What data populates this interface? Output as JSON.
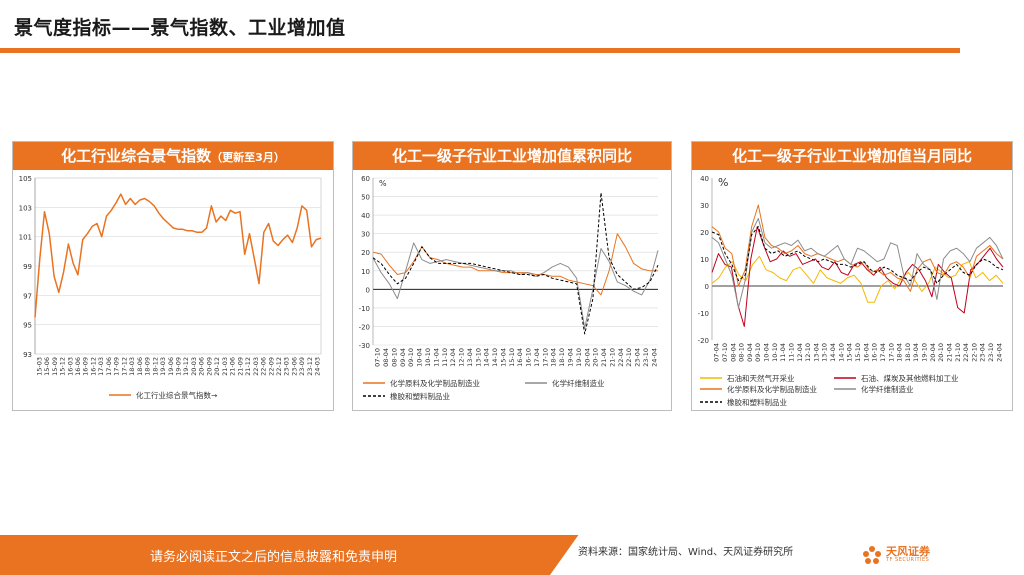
{
  "page": {
    "title": "景气度指标——景气指数、工业增加值",
    "footer_left": "请务必阅读正文之后的信息披露和免责申明",
    "footer_source": "资料来源：国家统计局、Wind、天风证券研究所",
    "logo_text": "天风证券",
    "logo_sub": "TF SECURITIES",
    "accent": "#e97321"
  },
  "chart_data": [
    {
      "type": "line",
      "title": "化工行业综合景气指数",
      "subtitle": "（更新至3月）",
      "ylim": [
        93,
        105
      ],
      "yticks": [
        "105",
        "103",
        "101",
        "99",
        "97",
        "95",
        "93"
      ],
      "xticks": [
        "15-03",
        "15-06",
        "15-09",
        "15-12",
        "16-03",
        "16-06",
        "16-09",
        "16-12",
        "17-03",
        "17-06",
        "17-09",
        "17-12",
        "18-03",
        "18-06",
        "18-09",
        "18-12",
        "19-03",
        "19-06",
        "19-09",
        "19-12",
        "20-03",
        "20-06",
        "20-09",
        "20-12",
        "21-03",
        "21-06",
        "21-09",
        "21-12",
        "22-03",
        "22-06",
        "22-09",
        "22-12",
        "23-03",
        "23-06",
        "23-09",
        "23-12",
        "24-03"
      ],
      "grid": true,
      "legend": "bottom",
      "series": [
        {
          "name": "化工行业综合景气指数→",
          "color": "#e97321",
          "values": [
            95.5,
            99.5,
            102.7,
            101.2,
            98.3,
            97.2,
            98.6,
            100.5,
            99.2,
            98.4,
            100.8,
            101.2,
            101.7,
            101.9,
            101.0,
            102.4,
            102.8,
            103.3,
            103.9,
            103.2,
            103.6,
            103.2,
            103.5,
            103.6,
            103.4,
            103.1,
            102.6,
            102.2,
            101.9,
            101.6,
            101.5,
            101.5,
            101.4,
            101.4,
            101.3,
            101.3,
            101.6,
            103.1,
            102.0,
            102.4,
            102.1,
            102.8,
            102.6,
            102.7,
            99.8,
            101.2,
            99.5,
            97.8,
            101.3,
            101.9,
            100.7,
            100.4,
            100.8,
            101.1,
            100.6,
            101.6,
            103.1,
            102.8,
            100.3,
            100.8,
            100.9
          ]
        }
      ]
    },
    {
      "type": "line",
      "title": "化工一级子行业工业增加值累积同比",
      "unit": "%",
      "ylim": [
        -30,
        60
      ],
      "yticks": [
        "60",
        "50",
        "40",
        "30",
        "20",
        "10",
        "0",
        "-10",
        "-20",
        "-30"
      ],
      "xticks": [
        "07-10",
        "08-04",
        "08-10",
        "09-04",
        "09-10",
        "10-04",
        "10-10",
        "11-04",
        "11-10",
        "12-04",
        "12-10",
        "13-04",
        "13-10",
        "14-04",
        "14-10",
        "15-04",
        "15-10",
        "16-04",
        "16-10",
        "17-04",
        "17-10",
        "18-04",
        "18-10",
        "19-04",
        "19-10",
        "20-04",
        "20-10",
        "21-04",
        "21-10",
        "22-04",
        "22-10",
        "23-04",
        "23-10",
        "24-04"
      ],
      "legend": "bottom",
      "series": [
        {
          "name": "化学原料及化学制品制造业",
          "color": "#e97321",
          "dash": "",
          "values": [
            20,
            19,
            13,
            8,
            9,
            15,
            23,
            17,
            16,
            14,
            13,
            12,
            12,
            10,
            10,
            10,
            9,
            9,
            9,
            9,
            8,
            8,
            7,
            7,
            5,
            4,
            3,
            2,
            -3,
            10,
            30,
            23,
            14,
            11,
            10,
            10
          ]
        },
        {
          "name": "化学纤维制造业",
          "color": "#8c8c8c",
          "dash": "",
          "values": [
            17,
            9,
            3,
            -5,
            10,
            25,
            16,
            14,
            15,
            16,
            15,
            14,
            13,
            12,
            11,
            10,
            10,
            10,
            8,
            9,
            7,
            9,
            12,
            14,
            12,
            6,
            -21,
            0,
            22,
            15,
            4,
            2,
            -1,
            -3,
            5,
            21
          ]
        },
        {
          "name": "橡胶和塑料制品业",
          "color": "#000000",
          "dash": "3,2",
          "values": [
            17,
            14,
            8,
            3,
            6,
            14,
            23,
            17,
            14,
            14,
            14,
            14,
            14,
            13,
            12,
            11,
            10,
            9,
            8,
            8,
            7,
            8,
            6,
            5,
            4,
            3,
            -24,
            -5,
            52,
            17,
            8,
            4,
            0,
            1,
            4,
            13
          ]
        }
      ]
    },
    {
      "type": "line",
      "title": "化工一级子行业工业增加值当月同比",
      "unit": "%",
      "ylim": [
        -20,
        40
      ],
      "yticks": [
        "40",
        "30",
        "20",
        "10",
        "0",
        "-10",
        "-20"
      ],
      "xticks": [
        "07-04",
        "07-10",
        "08-04",
        "08-10",
        "09-04",
        "09-10",
        "10-04",
        "10-10",
        "11-04",
        "11-10",
        "12-04",
        "12-10",
        "13-04",
        "13-10",
        "14-04",
        "14-10",
        "15-04",
        "15-10",
        "16-04",
        "16-10",
        "17-04",
        "17-10",
        "18-04",
        "18-10",
        "19-04",
        "19-10",
        "20-04",
        "20-10",
        "21-04",
        "21-10",
        "22-04",
        "22-10",
        "23-04",
        "23-10",
        "24-04"
      ],
      "legend": "bottom",
      "series": [
        {
          "name": "石油和天然气开采业",
          "color": "#f5b800",
          "dash": "",
          "values": [
            1,
            3,
            7,
            9,
            4,
            2,
            8,
            11,
            6,
            5,
            3,
            2,
            6,
            7,
            4,
            1,
            6,
            3,
            2,
            1,
            3,
            4,
            1,
            -6,
            -6,
            0,
            2,
            -1,
            3,
            5,
            2,
            -2,
            1,
            7,
            5,
            3,
            4,
            8,
            9,
            3,
            5,
            2,
            4,
            1
          ]
        },
        {
          "name": "石油、煤炭及其他燃料加工业",
          "color": "#c0001b",
          "dash": "",
          "values": [
            5,
            12,
            8,
            7,
            -7,
            -15,
            10,
            22,
            15,
            9,
            10,
            13,
            11,
            12,
            8,
            9,
            10,
            7,
            6,
            9,
            5,
            4,
            8,
            9,
            6,
            4,
            7,
            3,
            1,
            0,
            5,
            8,
            6,
            2,
            -4,
            8,
            5,
            3,
            -8,
            -10,
            6,
            8,
            11,
            14,
            10,
            7
          ]
        },
        {
          "name": "化学原料及化学制品制造业",
          "color": "#e97321",
          "dash": "",
          "values": [
            22,
            20,
            14,
            12,
            0,
            6,
            22,
            30,
            18,
            15,
            14,
            12,
            13,
            15,
            12,
            11,
            12,
            11,
            10,
            9,
            10,
            8,
            7,
            9,
            5,
            6,
            4,
            5,
            3,
            2,
            -2,
            6,
            9,
            10,
            5,
            4,
            8,
            9,
            7,
            3,
            11,
            13,
            15,
            12,
            10
          ]
        },
        {
          "name": "化学纤维制造业",
          "color": "#8c8c8c",
          "dash": "",
          "values": [
            18,
            16,
            10,
            4,
            -8,
            2,
            20,
            25,
            16,
            14,
            15,
            16,
            15,
            17,
            13,
            14,
            12,
            11,
            13,
            15,
            10,
            8,
            14,
            13,
            11,
            9,
            10,
            16,
            15,
            4,
            0,
            12,
            8,
            6,
            -5,
            10,
            13,
            14,
            12,
            9,
            14,
            16,
            18,
            15,
            10
          ]
        },
        {
          "name": "橡胶和塑料制品业",
          "color": "#000000",
          "dash": "3,2",
          "values": [
            20,
            19,
            12,
            8,
            2,
            4,
            19,
            22,
            14,
            12,
            13,
            11,
            12,
            13,
            11,
            10,
            9,
            10,
            9,
            8,
            8,
            7,
            8,
            9,
            6,
            5,
            7,
            6,
            4,
            3,
            2,
            5,
            7,
            6,
            1,
            4,
            6,
            8,
            5,
            4,
            8,
            10,
            9,
            7,
            6
          ]
        }
      ]
    }
  ]
}
